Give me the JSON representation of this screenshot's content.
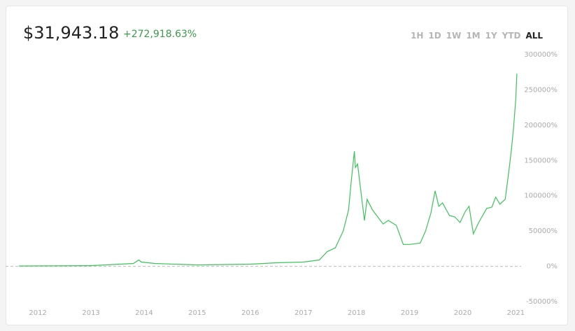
{
  "header": {
    "price": "$31,943.18",
    "change": "+272,918.63%"
  },
  "ranges": [
    {
      "label": "1H",
      "selected": false
    },
    {
      "label": "1D",
      "selected": false
    },
    {
      "label": "1W",
      "selected": false
    },
    {
      "label": "1M",
      "selected": false
    },
    {
      "label": "1Y",
      "selected": false
    },
    {
      "label": "YTD",
      "selected": false
    },
    {
      "label": "ALL",
      "selected": true
    }
  ],
  "chart_data": {
    "type": "line",
    "color": "#3cc35a",
    "x": [
      2011.64,
      2013.0,
      2013.8,
      2013.9,
      2013.95,
      2014.2,
      2015.0,
      2016.0,
      2016.5,
      2017.0,
      2017.3,
      2017.45,
      2017.6,
      2017.75,
      2017.85,
      2017.9,
      2017.96,
      2017.98,
      2018.02,
      2018.06,
      2018.1,
      2018.15,
      2018.2,
      2018.3,
      2018.4,
      2018.5,
      2018.6,
      2018.75,
      2018.88,
      2019.0,
      2019.2,
      2019.3,
      2019.4,
      2019.48,
      2019.55,
      2019.62,
      2019.75,
      2019.85,
      2019.95,
      2020.05,
      2020.12,
      2020.2,
      2020.3,
      2020.45,
      2020.55,
      2020.62,
      2020.7,
      2020.8,
      2020.87,
      2020.92,
      2020.96,
      2021.0,
      2021.02
    ],
    "values": [
      500,
      1000,
      4000,
      9000,
      6000,
      4000,
      2000,
      3000,
      5000,
      6000,
      9000,
      21000,
      26000,
      50000,
      80000,
      120000,
      163000,
      140000,
      145000,
      120000,
      95000,
      65000,
      95000,
      80000,
      70000,
      60000,
      65000,
      58000,
      31000,
      31000,
      33000,
      50000,
      75000,
      107000,
      85000,
      90000,
      72000,
      70000,
      62000,
      78000,
      85000,
      46000,
      62000,
      82000,
      84000,
      98000,
      88000,
      95000,
      135000,
      167000,
      199000,
      238000,
      272918.63
    ],
    "xlim": [
      2011.55,
      2021.1
    ],
    "xticks": [
      2012,
      2013,
      2014,
      2015,
      2016,
      2017,
      2018,
      2019,
      2020,
      2021
    ],
    "ylim": [
      -50000,
      300000
    ],
    "yticks": [
      {
        "value": -50000,
        "label": "-50000%"
      },
      {
        "value": 0,
        "label": "0%"
      },
      {
        "value": 50000,
        "label": "50000%"
      },
      {
        "value": 100000,
        "label": "100000%"
      },
      {
        "value": 150000,
        "label": "150000%"
      },
      {
        "value": 200000,
        "label": "200000%"
      },
      {
        "value": 250000,
        "label": "250000%"
      },
      {
        "value": 300000,
        "label": "300000%"
      }
    ],
    "grid": false
  }
}
